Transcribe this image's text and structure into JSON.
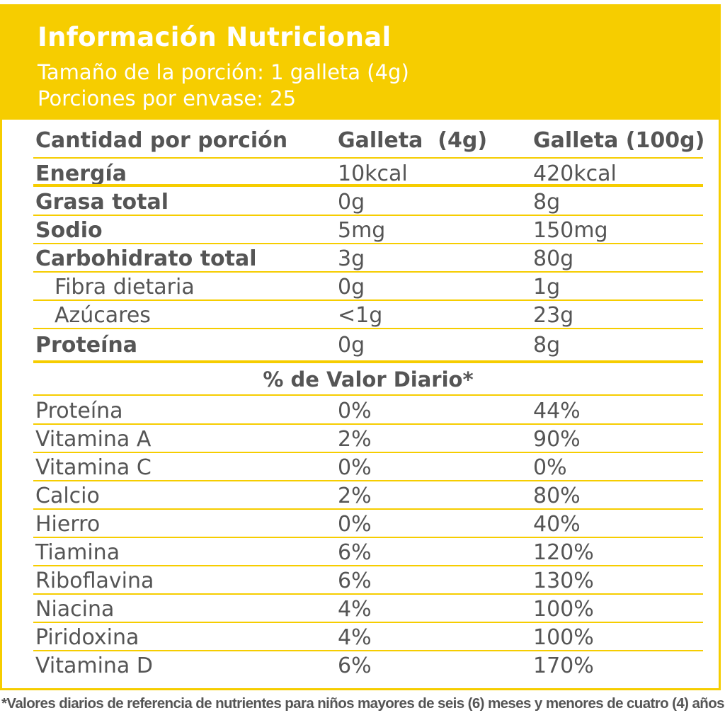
{
  "header": {
    "title": "Información Nutricional",
    "serving_size": "Tamaño de la porción: 1 galleta (4g)",
    "servings_per_container": "Porciones por envase: 25"
  },
  "table_header": {
    "col1": "Cantidad por porción",
    "col2": "Galleta  (4g)",
    "col3": "Galleta (100g)"
  },
  "nutrients": [
    {
      "name": "Energía",
      "per_4g": "10kcal",
      "per_100g": "420kcal"
    },
    {
      "name": "Grasa total",
      "per_4g": "0g",
      "per_100g": "8g"
    },
    {
      "name": "Sodio",
      "per_4g": "5mg",
      "per_100g": "150mg"
    },
    {
      "name": "Carbohidrato total",
      "per_4g": "3g",
      "per_100g": "80g"
    },
    {
      "name": "Fibra dietaria",
      "per_4g": "0g",
      "per_100g": "1g"
    },
    {
      "name": "Azúcares",
      "per_4g": "<1g",
      "per_100g": "23g"
    },
    {
      "name": "Proteína",
      "per_4g": "0g",
      "per_100g": "8g"
    }
  ],
  "daily_value_heading": "% de Valor Diario*",
  "daily_values": [
    {
      "name": "Proteína",
      "per_4g": "0%",
      "per_100g": "44%"
    },
    {
      "name": "Vitamina A",
      "per_4g": "2%",
      "per_100g": "90%"
    },
    {
      "name": "Vitamina C",
      "per_4g": "0%",
      "per_100g": "0%"
    },
    {
      "name": "Calcio",
      "per_4g": "2%",
      "per_100g": "80%"
    },
    {
      "name": "Hierro",
      "per_4g": "0%",
      "per_100g": "40%"
    },
    {
      "name": "Tiamina",
      "per_4g": "6%",
      "per_100g": "120%"
    },
    {
      "name": "Riboflavina",
      "per_4g": "6%",
      "per_100g": "130%"
    },
    {
      "name": "Niacina",
      "per_4g": "4%",
      "per_100g": "100%"
    },
    {
      "name": "Piridoxina",
      "per_4g": "4%",
      "per_100g": "100%"
    },
    {
      "name": "Vitamina D",
      "per_4g": "6%",
      "per_100g": "170%"
    }
  ],
  "footnote": "*Valores diarios de referencia de nutrientes para niños mayores de seis (6) meses y menores de cuatro (4) años.",
  "colors": {
    "accent": "#f6cd00",
    "text": "#555555",
    "header_text": "#ffffff"
  }
}
